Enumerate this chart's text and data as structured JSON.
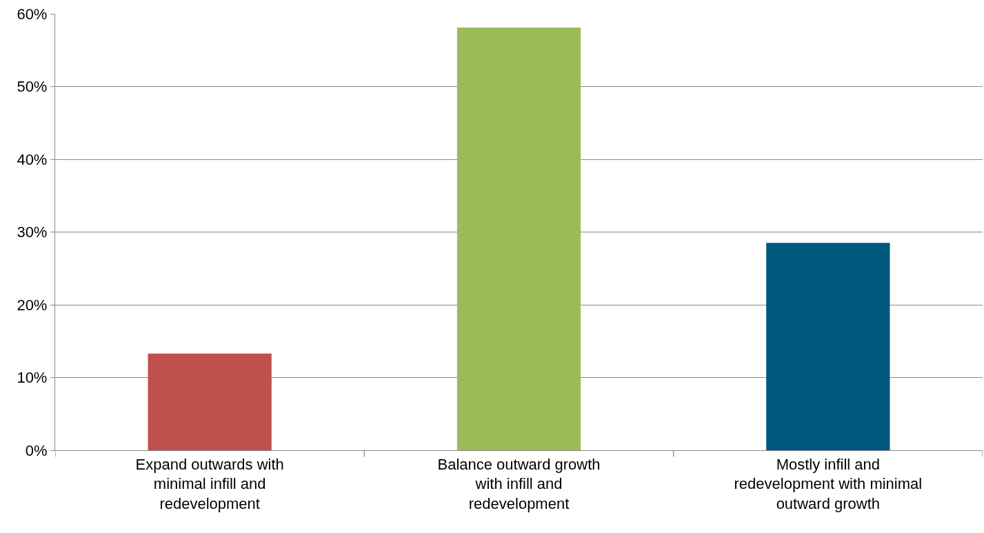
{
  "chart_data": {
    "type": "bar",
    "categories": [
      "Expand outwards with minimal infill and redevelopment",
      "Balance outward growth with infill and redevelopment",
      "Mostly infill and redevelopment with minimal outward growth"
    ],
    "values": [
      13.3,
      58.1,
      28.5
    ],
    "colors": [
      "#c0504d",
      "#9bbb59",
      "#00587f"
    ],
    "ylim": [
      0,
      60
    ],
    "yticks": [
      {
        "value": 0,
        "label": "0%"
      },
      {
        "value": 10,
        "label": "10%"
      },
      {
        "value": 20,
        "label": "20%"
      },
      {
        "value": 30,
        "label": "30%"
      },
      {
        "value": 40,
        "label": "40%"
      },
      {
        "value": 50,
        "label": "50%"
      },
      {
        "value": 60,
        "label": "60%"
      }
    ],
    "grid": "y"
  }
}
